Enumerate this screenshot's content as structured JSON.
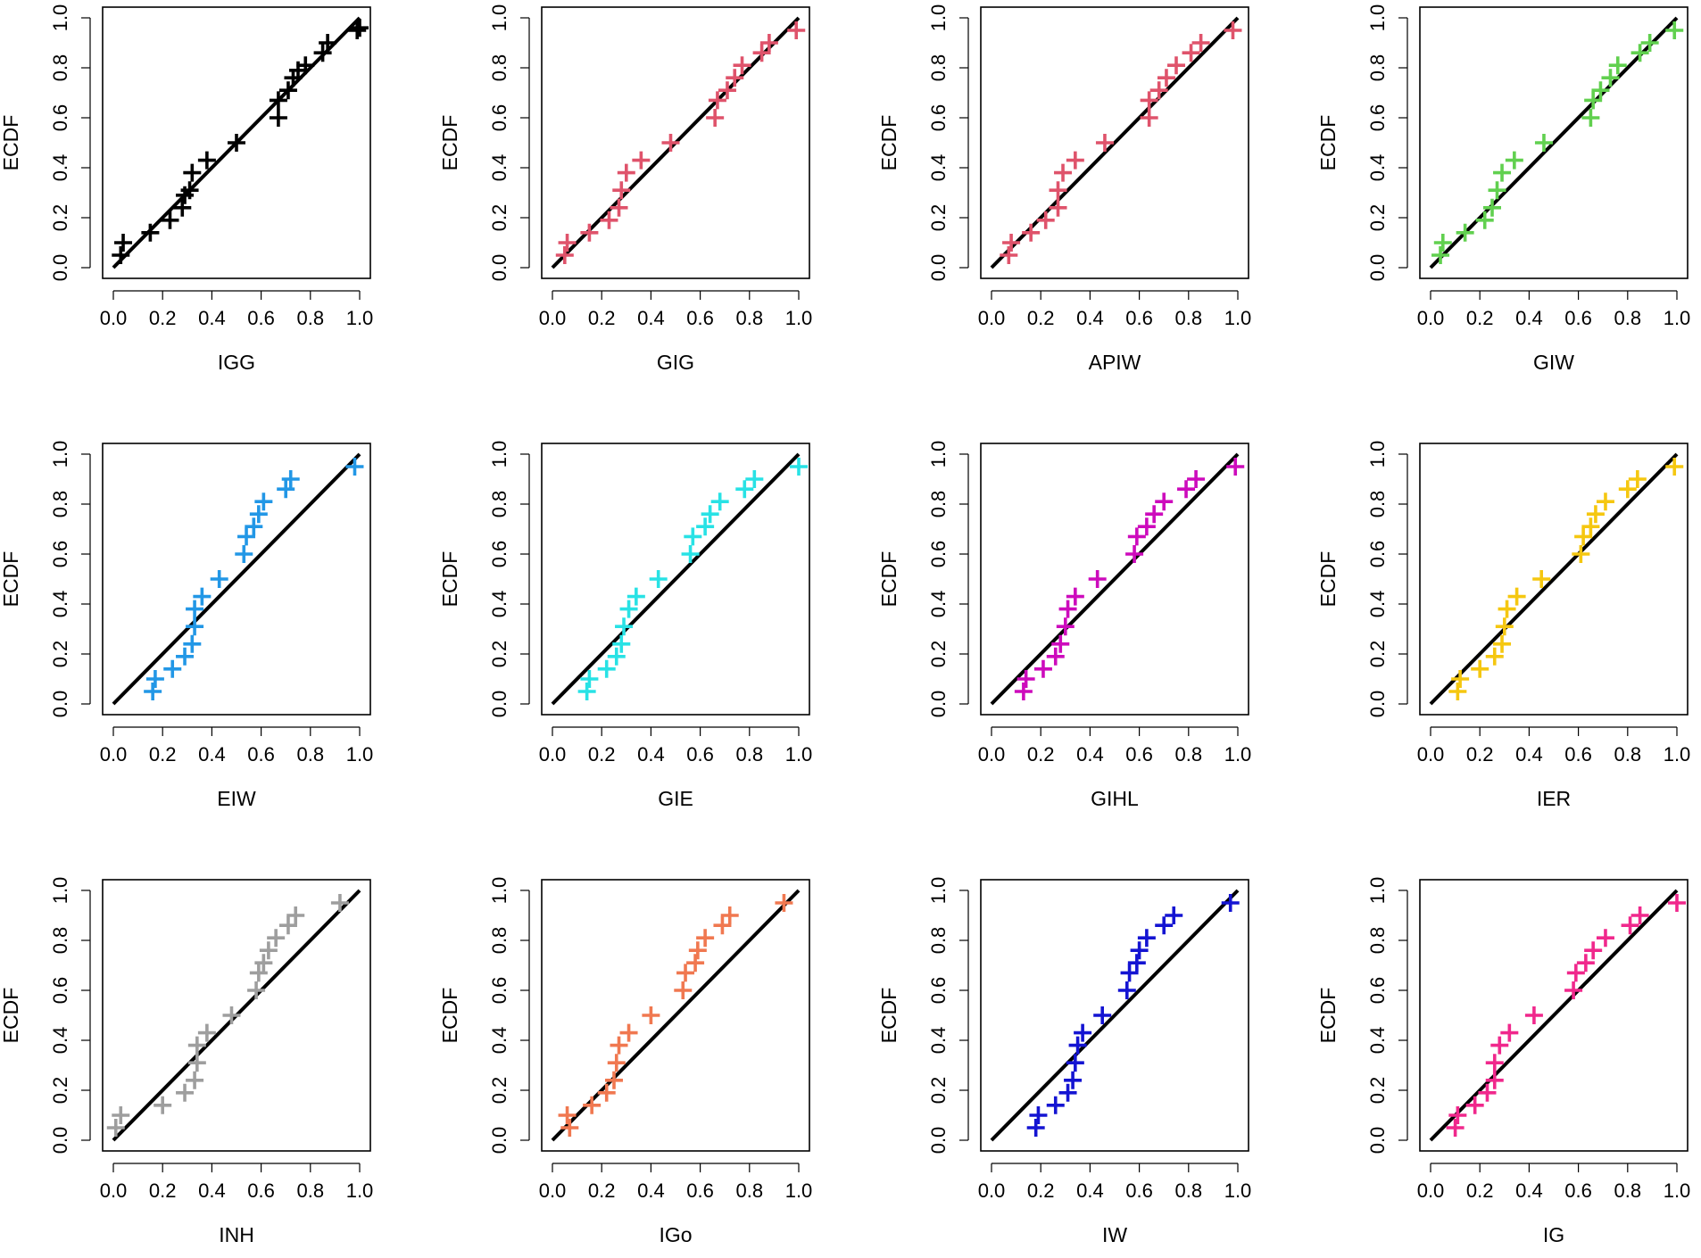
{
  "chart_data": [
    {
      "type": "scatter",
      "xlabel": "IGG",
      "ylabel": "ECDF",
      "xlim": [
        0,
        1
      ],
      "ylim": [
        0,
        1
      ],
      "color": "#000000",
      "reference_line": [
        [
          0,
          0
        ],
        [
          1,
          1
        ]
      ],
      "x": [
        0.03,
        0.04,
        0.15,
        0.23,
        0.28,
        0.29,
        0.31,
        0.32,
        0.38,
        0.5,
        0.67,
        0.67,
        0.71,
        0.73,
        0.75,
        0.78,
        0.85,
        0.87,
        0.99,
        1.0
      ],
      "y": [
        0.05,
        0.1,
        0.14,
        0.19,
        0.24,
        0.29,
        0.31,
        0.38,
        0.43,
        0.5,
        0.6,
        0.67,
        0.71,
        0.76,
        0.79,
        0.81,
        0.86,
        0.9,
        0.95,
        0.96
      ]
    },
    {
      "type": "scatter",
      "xlabel": "GIG",
      "ylabel": "ECDF",
      "xlim": [
        0,
        1
      ],
      "ylim": [
        0,
        1
      ],
      "color": "#DF536B",
      "reference_line": [
        [
          0,
          0
        ],
        [
          1,
          1
        ]
      ],
      "x": [
        0.05,
        0.06,
        0.15,
        0.23,
        0.27,
        0.28,
        0.3,
        0.36,
        0.48,
        0.66,
        0.67,
        0.71,
        0.74,
        0.77,
        0.85,
        0.88,
        0.99
      ],
      "y": [
        0.05,
        0.1,
        0.14,
        0.19,
        0.24,
        0.31,
        0.38,
        0.43,
        0.5,
        0.6,
        0.67,
        0.71,
        0.76,
        0.81,
        0.86,
        0.9,
        0.95
      ]
    },
    {
      "type": "scatter",
      "xlabel": "APIW",
      "ylabel": "ECDF",
      "xlim": [
        0,
        1
      ],
      "ylim": [
        0,
        1
      ],
      "color": "#DF536B",
      "reference_line": [
        [
          0,
          0
        ],
        [
          1,
          1
        ]
      ],
      "x": [
        0.07,
        0.08,
        0.16,
        0.22,
        0.27,
        0.27,
        0.29,
        0.34,
        0.46,
        0.64,
        0.64,
        0.68,
        0.71,
        0.75,
        0.81,
        0.85,
        0.98
      ],
      "y": [
        0.05,
        0.1,
        0.14,
        0.19,
        0.24,
        0.31,
        0.38,
        0.43,
        0.5,
        0.6,
        0.67,
        0.71,
        0.76,
        0.81,
        0.86,
        0.9,
        0.95
      ]
    },
    {
      "type": "scatter",
      "xlabel": "GIW",
      "ylabel": "ECDF",
      "xlim": [
        0,
        1
      ],
      "ylim": [
        0,
        1
      ],
      "color": "#61D04F",
      "reference_line": [
        [
          0,
          0
        ],
        [
          1,
          1
        ]
      ],
      "x": [
        0.04,
        0.05,
        0.14,
        0.22,
        0.25,
        0.27,
        0.29,
        0.34,
        0.46,
        0.65,
        0.66,
        0.69,
        0.73,
        0.76,
        0.85,
        0.89,
        0.99
      ],
      "y": [
        0.05,
        0.1,
        0.14,
        0.19,
        0.24,
        0.31,
        0.38,
        0.43,
        0.5,
        0.6,
        0.67,
        0.71,
        0.76,
        0.81,
        0.86,
        0.9,
        0.95
      ]
    },
    {
      "type": "scatter",
      "xlabel": "EIW",
      "ylabel": "ECDF",
      "xlim": [
        0,
        1
      ],
      "ylim": [
        0,
        1
      ],
      "color": "#2297E6",
      "reference_line": [
        [
          0,
          0
        ],
        [
          1,
          1
        ]
      ],
      "x": [
        0.16,
        0.17,
        0.24,
        0.29,
        0.32,
        0.33,
        0.33,
        0.36,
        0.43,
        0.53,
        0.54,
        0.57,
        0.59,
        0.61,
        0.7,
        0.72,
        0.98
      ],
      "y": [
        0.05,
        0.1,
        0.14,
        0.19,
        0.24,
        0.31,
        0.38,
        0.43,
        0.5,
        0.6,
        0.67,
        0.71,
        0.76,
        0.81,
        0.86,
        0.9,
        0.95
      ]
    },
    {
      "type": "scatter",
      "xlabel": "GIE",
      "ylabel": "ECDF",
      "xlim": [
        0,
        1
      ],
      "ylim": [
        0,
        1
      ],
      "color": "#28E2E5",
      "reference_line": [
        [
          0,
          0
        ],
        [
          1,
          1
        ]
      ],
      "x": [
        0.14,
        0.15,
        0.22,
        0.26,
        0.28,
        0.29,
        0.31,
        0.34,
        0.43,
        0.56,
        0.57,
        0.62,
        0.64,
        0.68,
        0.78,
        0.82,
        1.0
      ],
      "y": [
        0.05,
        0.1,
        0.14,
        0.19,
        0.24,
        0.31,
        0.38,
        0.43,
        0.5,
        0.6,
        0.67,
        0.71,
        0.76,
        0.81,
        0.86,
        0.9,
        0.95
      ]
    },
    {
      "type": "scatter",
      "xlabel": "GIHL",
      "ylabel": "ECDF",
      "xlim": [
        0,
        1
      ],
      "ylim": [
        0,
        1
      ],
      "color": "#CD0BBC",
      "reference_line": [
        [
          0,
          0
        ],
        [
          1,
          1
        ]
      ],
      "x": [
        0.13,
        0.14,
        0.21,
        0.26,
        0.28,
        0.3,
        0.31,
        0.34,
        0.43,
        0.58,
        0.59,
        0.63,
        0.66,
        0.7,
        0.79,
        0.83,
        0.99
      ],
      "y": [
        0.05,
        0.1,
        0.14,
        0.19,
        0.24,
        0.31,
        0.38,
        0.43,
        0.5,
        0.6,
        0.67,
        0.71,
        0.76,
        0.81,
        0.86,
        0.9,
        0.95
      ]
    },
    {
      "type": "scatter",
      "xlabel": "IER",
      "ylabel": "ECDF",
      "xlim": [
        0,
        1
      ],
      "ylim": [
        0,
        1
      ],
      "color": "#F5C710",
      "reference_line": [
        [
          0,
          0
        ],
        [
          1,
          1
        ]
      ],
      "x": [
        0.11,
        0.12,
        0.2,
        0.26,
        0.29,
        0.3,
        0.31,
        0.35,
        0.45,
        0.61,
        0.62,
        0.65,
        0.67,
        0.71,
        0.8,
        0.84,
        0.99
      ],
      "y": [
        0.05,
        0.1,
        0.14,
        0.19,
        0.24,
        0.31,
        0.38,
        0.43,
        0.5,
        0.6,
        0.67,
        0.71,
        0.76,
        0.81,
        0.86,
        0.9,
        0.95
      ]
    },
    {
      "type": "scatter",
      "xlabel": "INH",
      "ylabel": "ECDF",
      "xlim": [
        0,
        1
      ],
      "ylim": [
        0,
        1
      ],
      "color": "#9E9E9E",
      "reference_line": [
        [
          0,
          0
        ],
        [
          1,
          1
        ]
      ],
      "x": [
        0.01,
        0.03,
        0.2,
        0.29,
        0.33,
        0.34,
        0.34,
        0.38,
        0.48,
        0.58,
        0.59,
        0.61,
        0.63,
        0.66,
        0.71,
        0.74,
        0.92
      ],
      "y": [
        0.05,
        0.1,
        0.14,
        0.19,
        0.24,
        0.31,
        0.38,
        0.43,
        0.5,
        0.6,
        0.67,
        0.71,
        0.76,
        0.81,
        0.86,
        0.9,
        0.95
      ]
    },
    {
      "type": "scatter",
      "xlabel": "IGo",
      "ylabel": "ECDF",
      "xlim": [
        0,
        1
      ],
      "ylim": [
        0,
        1
      ],
      "color": "#F07850",
      "reference_line": [
        [
          0,
          0
        ],
        [
          1,
          1
        ]
      ],
      "x": [
        0.07,
        0.06,
        0.16,
        0.22,
        0.25,
        0.26,
        0.27,
        0.31,
        0.4,
        0.53,
        0.54,
        0.58,
        0.59,
        0.62,
        0.69,
        0.72,
        0.94
      ],
      "y": [
        0.05,
        0.1,
        0.14,
        0.19,
        0.24,
        0.31,
        0.38,
        0.43,
        0.5,
        0.6,
        0.67,
        0.71,
        0.76,
        0.81,
        0.86,
        0.9,
        0.95
      ]
    },
    {
      "type": "scatter",
      "xlabel": "IW",
      "ylabel": "ECDF",
      "xlim": [
        0,
        1
      ],
      "ylim": [
        0,
        1
      ],
      "color": "#1414D2",
      "reference_line": [
        [
          0,
          0
        ],
        [
          1,
          1
        ]
      ],
      "x": [
        0.18,
        0.19,
        0.26,
        0.31,
        0.33,
        0.34,
        0.35,
        0.37,
        0.45,
        0.55,
        0.56,
        0.59,
        0.6,
        0.63,
        0.7,
        0.74,
        0.97
      ],
      "y": [
        0.05,
        0.1,
        0.14,
        0.19,
        0.24,
        0.31,
        0.38,
        0.43,
        0.5,
        0.6,
        0.67,
        0.71,
        0.76,
        0.81,
        0.86,
        0.9,
        0.95
      ]
    },
    {
      "type": "scatter",
      "xlabel": "IG",
      "ylabel": "ECDF",
      "xlim": [
        0,
        1
      ],
      "ylim": [
        0,
        1
      ],
      "color": "#F0288C",
      "reference_line": [
        [
          0,
          0
        ],
        [
          1,
          1
        ]
      ],
      "x": [
        0.1,
        0.11,
        0.18,
        0.23,
        0.26,
        0.26,
        0.28,
        0.32,
        0.42,
        0.58,
        0.59,
        0.63,
        0.66,
        0.71,
        0.81,
        0.85,
        1.0
      ],
      "y": [
        0.05,
        0.1,
        0.14,
        0.19,
        0.24,
        0.31,
        0.38,
        0.43,
        0.5,
        0.6,
        0.67,
        0.71,
        0.76,
        0.81,
        0.86,
        0.9,
        0.95
      ]
    }
  ]
}
